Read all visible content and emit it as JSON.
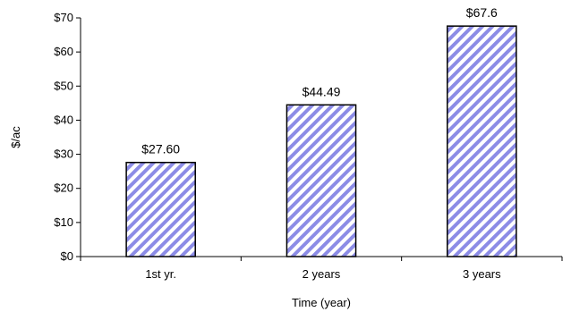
{
  "chart_data": {
    "type": "bar",
    "categories": [
      "1st yr.",
      "2 years",
      "3 years"
    ],
    "values": [
      27.6,
      44.49,
      67.6
    ],
    "data_labels": [
      "$27.60",
      "$44.49",
      "$67.6"
    ],
    "xlabel": "Time (year)",
    "ylabel": "$/ac",
    "ylim": [
      0,
      70
    ],
    "yticks": [
      0,
      10,
      20,
      30,
      40,
      50,
      60,
      70
    ],
    "ytick_labels": [
      "$0",
      "$10",
      "$20",
      "$30",
      "$40",
      "$50",
      "$60",
      "$70"
    ],
    "grid": false,
    "legend": "none",
    "bar_fill": "hatched diagonal stripes",
    "colors": {
      "stripe": "#8c8ce6",
      "bar_background": "#ffffff",
      "bar_border": "#000000",
      "axis": "#000000"
    }
  }
}
